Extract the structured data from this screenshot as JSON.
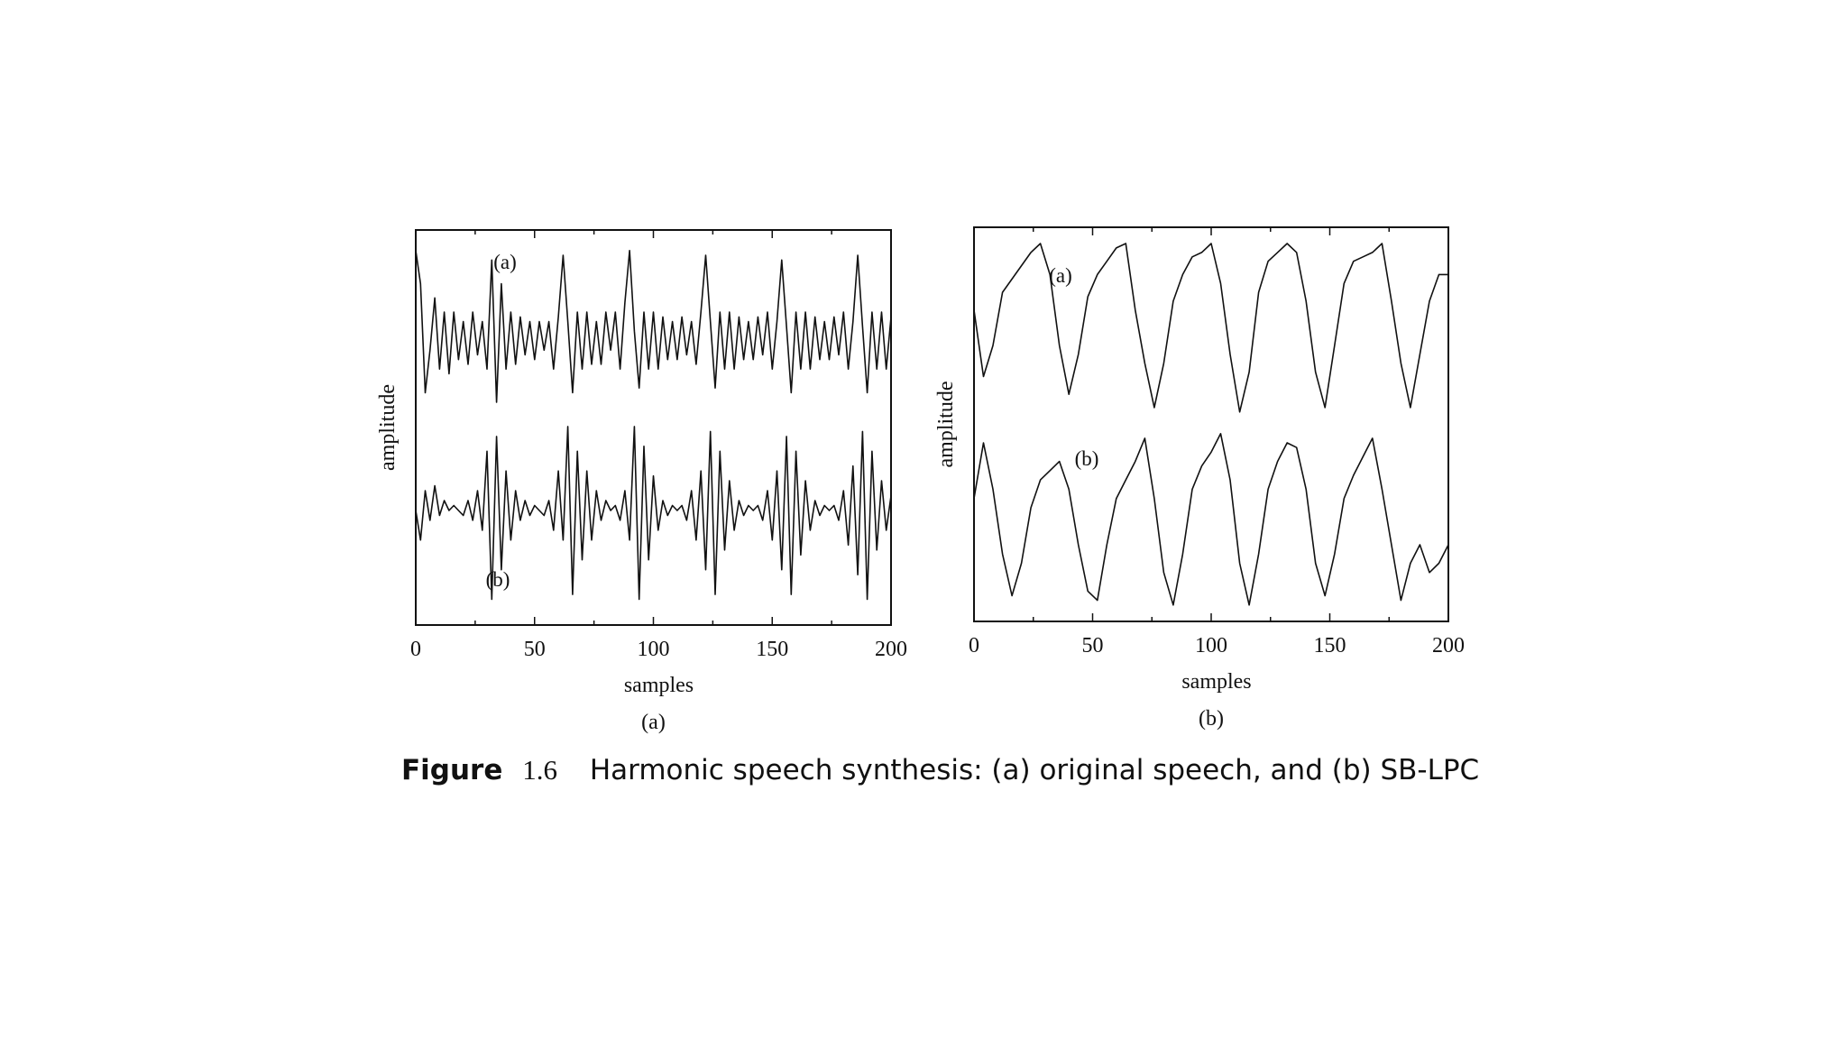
{
  "caption": {
    "label": "Figure",
    "number": "1.6",
    "text": "Harmonic speech synthesis: (a) original speech, and (b) SB-LPC"
  },
  "chart_data": [
    {
      "type": "line",
      "panel_label": "(a)",
      "xlabel": "samples",
      "ylabel": "amplitude",
      "xlim": [
        0,
        200
      ],
      "xticks": [
        0,
        50,
        100,
        150,
        200
      ],
      "yticks_labeled": false,
      "grid": false,
      "series": [
        {
          "name": "(a)",
          "x": [
            0,
            2,
            4,
            6,
            8,
            10,
            12,
            14,
            16,
            18,
            20,
            22,
            24,
            26,
            28,
            30,
            32,
            34,
            36,
            38,
            40,
            42,
            44,
            46,
            48,
            50,
            52,
            54,
            56,
            58,
            60,
            62,
            64,
            66,
            68,
            70,
            72,
            74,
            76,
            78,
            80,
            82,
            84,
            86,
            88,
            90,
            92,
            94,
            96,
            98,
            100,
            102,
            104,
            106,
            108,
            110,
            112,
            114,
            116,
            118,
            120,
            122,
            124,
            126,
            128,
            130,
            132,
            134,
            136,
            138,
            140,
            142,
            144,
            146,
            148,
            150,
            152,
            154,
            156,
            158,
            160,
            162,
            164,
            166,
            168,
            170,
            172,
            174,
            176,
            178,
            180,
            182,
            184,
            186,
            188,
            190,
            192,
            194,
            196,
            198,
            200
          ],
          "y": [
            0.95,
            0.6,
            -0.55,
            -0.1,
            0.45,
            -0.3,
            0.3,
            -0.35,
            0.3,
            -0.2,
            0.2,
            -0.25,
            0.3,
            -0.15,
            0.2,
            -0.3,
            0.85,
            -0.65,
            0.6,
            -0.3,
            0.3,
            -0.25,
            0.25,
            -0.15,
            0.2,
            -0.2,
            0.2,
            -0.1,
            0.2,
            -0.3,
            0.25,
            0.9,
            0.2,
            -0.55,
            0.3,
            -0.3,
            0.3,
            -0.25,
            0.2,
            -0.25,
            0.3,
            -0.1,
            0.3,
            -0.3,
            0.4,
            0.95,
            0.1,
            -0.5,
            0.3,
            -0.3,
            0.3,
            -0.3,
            0.25,
            -0.2,
            0.2,
            -0.2,
            0.25,
            -0.15,
            0.2,
            -0.25,
            0.3,
            0.9,
            0.2,
            -0.5,
            0.3,
            -0.3,
            0.3,
            -0.3,
            0.25,
            -0.2,
            0.2,
            -0.2,
            0.25,
            -0.15,
            0.3,
            -0.3,
            0.2,
            0.85,
            0.15,
            -0.55,
            0.3,
            -0.3,
            0.3,
            -0.3,
            0.25,
            -0.2,
            0.2,
            -0.2,
            0.25,
            -0.15,
            0.3,
            -0.3,
            0.2,
            0.9,
            0.15,
            -0.55,
            0.3,
            -0.3,
            0.3,
            -0.3,
            0.25
          ]
        },
        {
          "name": "(b)",
          "x": [
            0,
            2,
            4,
            6,
            8,
            10,
            12,
            14,
            16,
            18,
            20,
            22,
            24,
            26,
            28,
            30,
            32,
            34,
            36,
            38,
            40,
            42,
            44,
            46,
            48,
            50,
            52,
            54,
            56,
            58,
            60,
            62,
            64,
            66,
            68,
            70,
            72,
            74,
            76,
            78,
            80,
            82,
            84,
            86,
            88,
            90,
            92,
            94,
            96,
            98,
            100,
            102,
            104,
            106,
            108,
            110,
            112,
            114,
            116,
            118,
            120,
            122,
            124,
            126,
            128,
            130,
            132,
            134,
            136,
            138,
            140,
            142,
            144,
            146,
            148,
            150,
            152,
            154,
            156,
            158,
            160,
            162,
            164,
            166,
            168,
            170,
            172,
            174,
            176,
            178,
            180,
            182,
            184,
            186,
            188,
            190,
            192,
            194,
            196,
            198,
            200
          ],
          "y": [
            0.0,
            -0.3,
            0.2,
            -0.1,
            0.25,
            -0.05,
            0.1,
            0.0,
            0.05,
            0.0,
            -0.05,
            0.1,
            -0.1,
            0.2,
            -0.2,
            0.6,
            -0.9,
            0.75,
            -0.6,
            0.4,
            -0.3,
            0.2,
            -0.1,
            0.1,
            -0.05,
            0.05,
            0.0,
            -0.05,
            0.1,
            -0.2,
            0.4,
            -0.3,
            0.85,
            -0.85,
            0.6,
            -0.5,
            0.4,
            -0.3,
            0.2,
            -0.1,
            0.1,
            0.0,
            0.05,
            -0.1,
            0.2,
            -0.3,
            0.85,
            -0.9,
            0.65,
            -0.5,
            0.35,
            -0.2,
            0.1,
            -0.05,
            0.05,
            0.0,
            0.05,
            -0.1,
            0.2,
            -0.3,
            0.4,
            -0.6,
            0.8,
            -0.85,
            0.6,
            -0.4,
            0.3,
            -0.2,
            0.1,
            -0.05,
            0.05,
            0.0,
            0.05,
            -0.1,
            0.2,
            -0.3,
            0.4,
            -0.6,
            0.75,
            -0.85,
            0.6,
            -0.45,
            0.3,
            -0.2,
            0.1,
            -0.05,
            0.05,
            0.0,
            0.05,
            -0.1,
            0.2,
            -0.35,
            0.45,
            -0.65,
            0.8,
            -0.9,
            0.6,
            -0.4,
            0.3,
            -0.2,
            0.15
          ]
        }
      ]
    },
    {
      "type": "line",
      "panel_label": "(b)",
      "xlabel": "samples",
      "ylabel": "amplitude",
      "xlim": [
        0,
        200
      ],
      "xticks": [
        0,
        50,
        100,
        150,
        200
      ],
      "yticks_labeled": false,
      "grid": false,
      "series": [
        {
          "name": "(a)",
          "x": [
            0,
            4,
            8,
            12,
            16,
            20,
            24,
            28,
            32,
            36,
            40,
            44,
            48,
            52,
            56,
            60,
            64,
            68,
            72,
            76,
            80,
            84,
            88,
            92,
            96,
            100,
            104,
            108,
            112,
            116,
            120,
            124,
            128,
            132,
            136,
            140,
            144,
            148,
            152,
            156,
            160,
            164,
            168,
            172,
            176,
            180,
            184,
            188,
            192,
            196,
            200
          ],
          "y": [
            0.2,
            -0.55,
            -0.2,
            0.4,
            0.55,
            0.7,
            0.85,
            0.95,
            0.6,
            -0.2,
            -0.75,
            -0.3,
            0.35,
            0.6,
            0.75,
            0.9,
            0.95,
            0.2,
            -0.4,
            -0.9,
            -0.4,
            0.3,
            0.6,
            0.8,
            0.85,
            0.95,
            0.5,
            -0.3,
            -0.95,
            -0.5,
            0.4,
            0.75,
            0.85,
            0.95,
            0.85,
            0.3,
            -0.5,
            -0.9,
            -0.2,
            0.5,
            0.75,
            0.8,
            0.85,
            0.95,
            0.3,
            -0.4,
            -0.9,
            -0.3,
            0.3,
            0.6,
            0.6
          ]
        },
        {
          "name": "(b)",
          "x": [
            0,
            4,
            8,
            12,
            16,
            20,
            24,
            28,
            32,
            36,
            40,
            44,
            48,
            52,
            56,
            60,
            64,
            68,
            72,
            76,
            80,
            84,
            88,
            92,
            96,
            100,
            104,
            108,
            112,
            116,
            120,
            124,
            128,
            132,
            136,
            140,
            144,
            148,
            152,
            156,
            160,
            164,
            168,
            172,
            176,
            180,
            184,
            188,
            192,
            196,
            200
          ],
          "y": [
            0.2,
            0.8,
            0.3,
            -0.4,
            -0.85,
            -0.5,
            0.1,
            0.4,
            0.5,
            0.6,
            0.3,
            -0.3,
            -0.8,
            -0.9,
            -0.3,
            0.2,
            0.4,
            0.6,
            0.85,
            0.2,
            -0.6,
            -0.95,
            -0.4,
            0.3,
            0.55,
            0.7,
            0.9,
            0.4,
            -0.5,
            -0.95,
            -0.4,
            0.3,
            0.6,
            0.8,
            0.75,
            0.3,
            -0.5,
            -0.85,
            -0.4,
            0.2,
            0.45,
            0.65,
            0.85,
            0.3,
            -0.3,
            -0.9,
            -0.5,
            -0.3,
            -0.6,
            -0.5,
            -0.3
          ]
        }
      ]
    }
  ]
}
